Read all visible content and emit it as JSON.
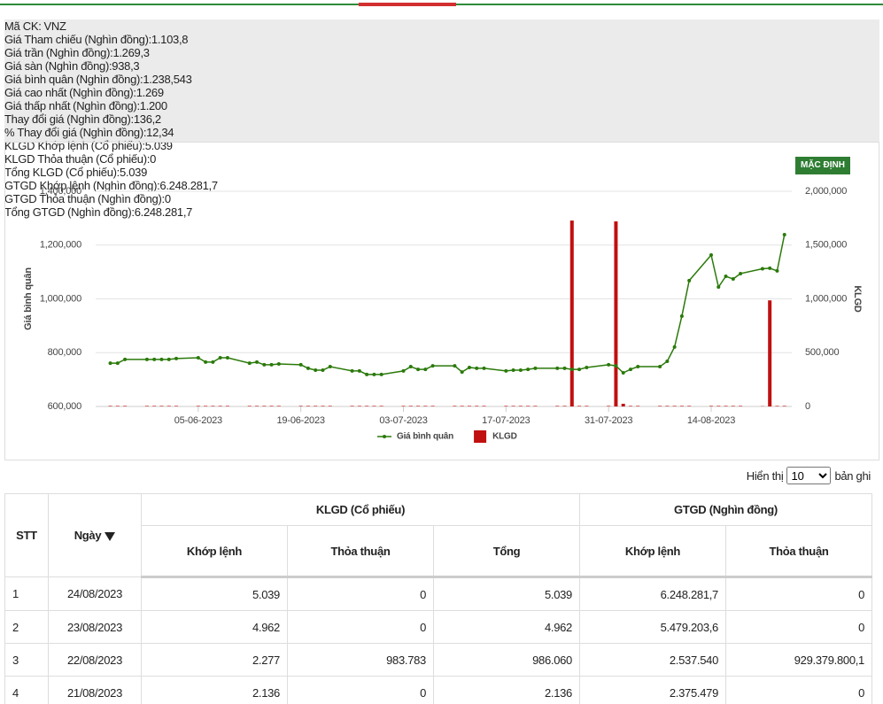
{
  "info": {
    "code": {
      "label": "Mã CK:",
      "value": "VNZ"
    },
    "rows": [
      [
        {
          "label": "Giá Tham chiếu",
          "unit": "(Nghìn đồng):",
          "value": "1.103,8"
        },
        {
          "label": "Giá trần",
          "unit": "(Nghìn đồng):",
          "value": "1.269,3"
        },
        {
          "label": "Giá sàn",
          "unit": "(Nghìn đồng):",
          "value": "938,3"
        },
        {
          "label": "Giá bình quân",
          "unit": "(Nghìn đồng):",
          "value": "1.238,543"
        }
      ],
      [
        {
          "label": "Giá cao nhất",
          "unit": "(Nghìn đồng):",
          "value": "1.269"
        },
        {
          "label": "Giá thấp nhất",
          "unit": "(Nghìn đồng):",
          "value": "1.200"
        },
        {
          "label": "Thay đổi giá",
          "unit": "(Nghìn đồng):",
          "value": "136,2"
        },
        {
          "label": "% Thay đổi giá",
          "unit": "(Nghìn đồng):",
          "value": "12,34"
        }
      ],
      [
        {
          "label": "KLGD Khớp lệnh",
          "unit": "(Cổ phiếu):",
          "value": "5.039"
        },
        {
          "label": "KLGD Thỏa thuận",
          "unit": "(Cổ phiếu):",
          "value": "0"
        },
        {
          "label": "Tổng KLGD",
          "unit": "(Cổ phiếu):",
          "value": "5.039"
        }
      ],
      [
        {
          "label": "GTGD Khớp lệnh",
          "unit": "(Nghìn đồng):",
          "value": "6.248.281,7"
        },
        {
          "label": "GTGD Thỏa thuận",
          "unit": "(Nghìn đồng):",
          "value": "0"
        },
        {
          "label": "Tổng GTGD",
          "unit": "(Nghìn đồng):",
          "value": "6.248.281,7"
        }
      ]
    ]
  },
  "button": "MẶC ĐỊNH",
  "chart_data": {
    "type": "combo",
    "y_label": "Giá bình quân",
    "y2_label": "KLGD",
    "x": [
      "24-05-2023",
      "25-05-2023",
      "26-05-2023",
      "29-05-2023",
      "30-05-2023",
      "31-05-2023",
      "01-06-2023",
      "02-06-2023",
      "05-06-2023",
      "06-06-2023",
      "07-06-2023",
      "08-06-2023",
      "09-06-2023",
      "12-06-2023",
      "13-06-2023",
      "14-06-2023",
      "15-06-2023",
      "16-06-2023",
      "19-06-2023",
      "20-06-2023",
      "21-06-2023",
      "22-06-2023",
      "23-06-2023",
      "26-06-2023",
      "27-06-2023",
      "28-06-2023",
      "29-06-2023",
      "30-06-2023",
      "03-07-2023",
      "04-07-2023",
      "05-07-2023",
      "06-07-2023",
      "07-07-2023",
      "10-07-2023",
      "11-07-2023",
      "12-07-2023",
      "13-07-2023",
      "14-07-2023",
      "17-07-2023",
      "18-07-2023",
      "19-07-2023",
      "20-07-2023",
      "21-07-2023",
      "24-07-2023",
      "25-07-2023",
      "26-07-2023",
      "27-07-2023",
      "28-07-2023",
      "31-07-2023",
      "01-08-2023",
      "02-08-2023",
      "03-08-2023",
      "04-08-2023",
      "07-08-2023",
      "08-08-2023",
      "09-08-2023",
      "10-08-2023",
      "11-08-2023",
      "14-08-2023",
      "15-08-2023",
      "16-08-2023",
      "17-08-2023",
      "18-08-2023",
      "21-08-2023",
      "22-08-2023",
      "23-08-2023",
      "24-08-2023"
    ],
    "series": [
      {
        "name": "Giá bình quân",
        "type": "line",
        "color": "#2b7a0b",
        "values": [
          761000,
          761000,
          775000,
          775000,
          775000,
          775000,
          775000,
          778000,
          781000,
          765000,
          765000,
          781000,
          781000,
          761000,
          765000,
          755000,
          755000,
          758000,
          755000,
          742000,
          735000,
          735000,
          748000,
          732000,
          732000,
          719000,
          719000,
          719000,
          732000,
          748000,
          738000,
          738000,
          751000,
          751000,
          728000,
          745000,
          742000,
          742000,
          732000,
          735000,
          735000,
          738000,
          742000,
          742000,
          742000,
          738000,
          738000,
          745000,
          755000,
          751000,
          725000,
          738000,
          748000,
          748000,
          768000,
          821000,
          936000,
          1068000,
          1163000,
          1044000,
          1084000,
          1074000,
          1094000,
          1112000,
          1114000,
          1104000,
          1238543
        ]
      },
      {
        "name": "KLGD",
        "type": "bar",
        "axis": "y2",
        "color": "#c0100f",
        "values": [
          5000,
          5000,
          5000,
          5000,
          5000,
          5000,
          5000,
          5000,
          5000,
          5000,
          5000,
          5000,
          5000,
          5000,
          5000,
          5000,
          5000,
          5000,
          5000,
          5000,
          5000,
          5000,
          5000,
          5000,
          5000,
          5000,
          5000,
          5000,
          5000,
          5000,
          5000,
          5000,
          5000,
          5000,
          5000,
          5000,
          5000,
          5000,
          5000,
          5000,
          5000,
          5000,
          5000,
          5000,
          5000,
          1728000,
          5000,
          5000,
          5000,
          1720000,
          25000,
          5000,
          5000,
          5000,
          5000,
          5000,
          5000,
          5000,
          5000,
          5000,
          5000,
          5000,
          5000,
          2136,
          986060,
          4962,
          5039
        ]
      }
    ],
    "xlim": [
      "22-05-2023",
      "25-08-2023"
    ],
    "xticks": [
      "05-06-2023",
      "19-06-2023",
      "03-07-2023",
      "17-07-2023",
      "31-07-2023",
      "14-08-2023"
    ],
    "ylim": [
      600000,
      1400000
    ],
    "yticks": [
      {
        "value": 600000,
        "label": "600,000"
      },
      {
        "value": 800000,
        "label": "800,000"
      },
      {
        "value": 1000000,
        "label": "1,000,000"
      },
      {
        "value": 1200000,
        "label": "1,200,000"
      },
      {
        "value": 1400000,
        "label": "1,400,000"
      }
    ],
    "y2lim": [
      0,
      2000000
    ],
    "y2ticks": [
      0,
      {
        "value": 500000,
        "label": "500,000"
      },
      {
        "value": 1000000,
        "label": "1,000,000"
      },
      {
        "value": 1500000,
        "label": "1,500,000"
      },
      {
        "value": 2000000,
        "label": "2,000,000"
      }
    ],
    "grid": true,
    "legend": "bottom"
  },
  "pager": {
    "before": "Hiển thị",
    "size": "10",
    "after": "bản ghi"
  },
  "table": {
    "header_top": [
      "STT",
      "Ngày",
      "KLGD (Cổ phiếu)",
      "GTGD (Nghìn đồng)"
    ],
    "header_sub": [
      "Khớp lệnh",
      "Thỏa thuận",
      "Tổng",
      "Khớp lệnh",
      "Thỏa thuận"
    ],
    "rows": [
      [
        "1",
        "24/08/2023",
        "5.039",
        "0",
        "5.039",
        "6.248.281,7",
        "0"
      ],
      [
        "2",
        "23/08/2023",
        "4.962",
        "0",
        "4.962",
        "5.479.203,6",
        "0"
      ],
      [
        "3",
        "22/08/2023",
        "2.277",
        "983.783",
        "986.060",
        "2.537.540",
        "929.379.800,1"
      ],
      [
        "4",
        "21/08/2023",
        "2.136",
        "0",
        "2.136",
        "2.375.479",
        "0"
      ]
    ]
  }
}
